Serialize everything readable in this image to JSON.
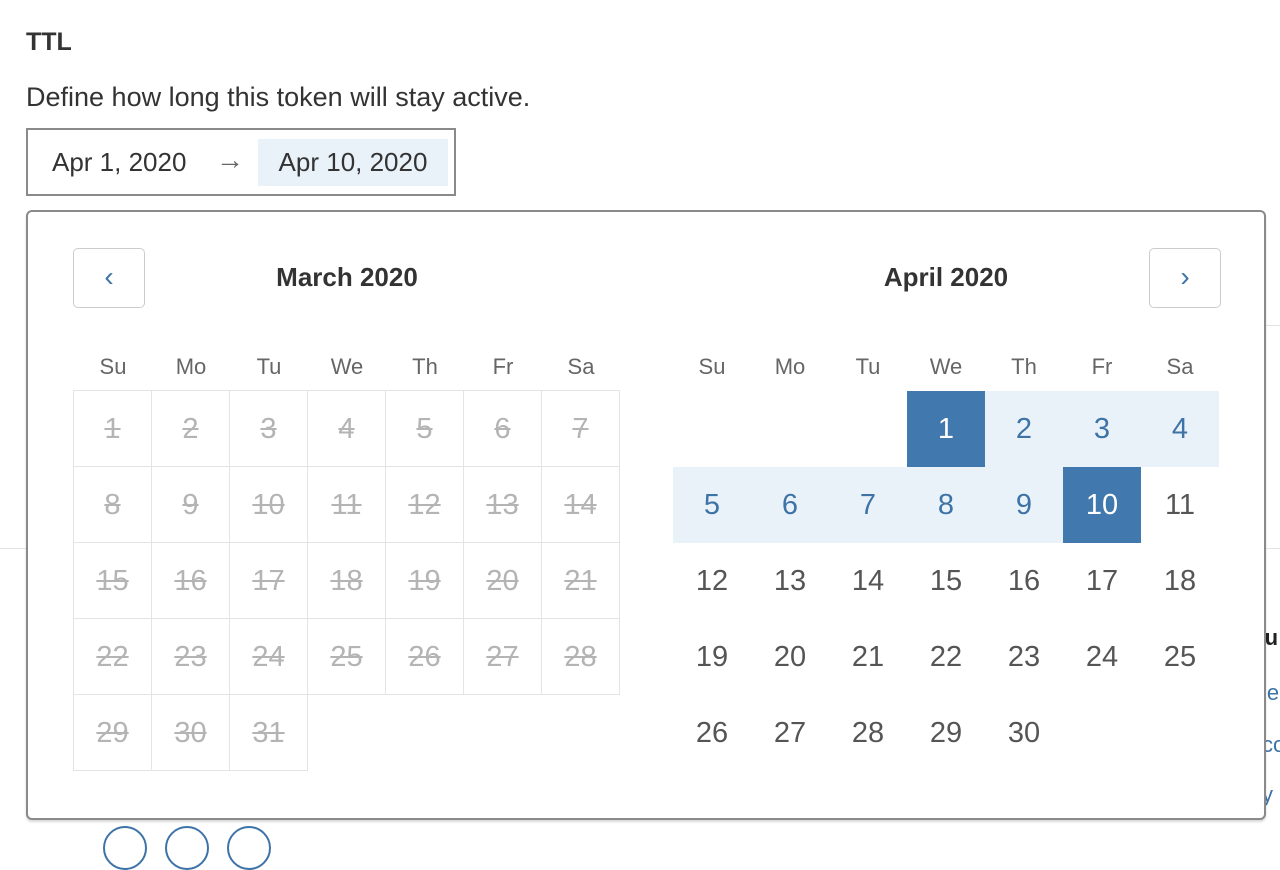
{
  "section": {
    "title": "TTL",
    "description": "Define how long this token will stay active."
  },
  "date_range": {
    "start": "Apr 1, 2020",
    "arrow": "→",
    "end": "Apr 10, 2020"
  },
  "calendar": {
    "prev_icon": "‹",
    "next_icon": "›",
    "weekdays": [
      "Su",
      "Mo",
      "Tu",
      "We",
      "Th",
      "Fr",
      "Sa"
    ],
    "months": [
      {
        "title": "March 2020",
        "first_weekday": 0,
        "days": 31,
        "disabled": true,
        "range": []
      },
      {
        "title": "April 2020",
        "first_weekday": 3,
        "days": 30,
        "disabled": false,
        "selected": [
          1,
          10
        ],
        "range": [
          1,
          10
        ]
      }
    ],
    "colors": {
      "selected": "#4178ad",
      "range": "#eaf2f9",
      "accent": "#3d73a6"
    }
  },
  "background": {
    "fragments": [
      "Su",
      "le",
      "co",
      "y"
    ]
  }
}
